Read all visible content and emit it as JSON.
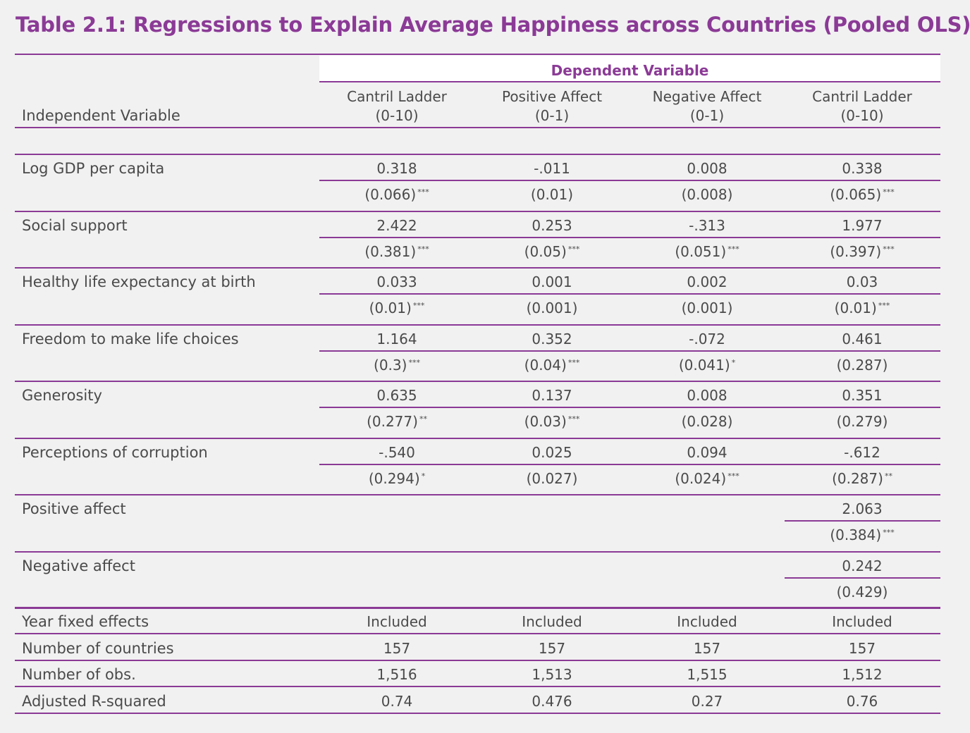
{
  "title": "Table 2.1: Regressions to Explain Average Happiness across Countries (Pooled OLS)",
  "dependent_variable_label": "Dependent Variable",
  "independent_variable_label": "Independent Variable",
  "columns": [
    {
      "name": "Cantril Ladder",
      "range": "(0-10)"
    },
    {
      "name": "Positive Affect",
      "range": "(0-1)"
    },
    {
      "name": "Negative Affect",
      "range": "(0-1)"
    },
    {
      "name": "Cantril Ladder",
      "range": "(0-10)"
    }
  ],
  "rows": [
    {
      "label": "Log GDP per capita",
      "coef": [
        "0.318",
        "-.011",
        "0.008",
        "0.338"
      ],
      "se": [
        "(0.066)",
        "(0.01)",
        "(0.008)",
        "(0.065)"
      ],
      "stars": [
        "***",
        "",
        "",
        "***"
      ]
    },
    {
      "label": "Social support",
      "coef": [
        "2.422",
        "0.253",
        "-.313",
        "1.977"
      ],
      "se": [
        "(0.381)",
        "(0.05)",
        "(0.051)",
        "(0.397)"
      ],
      "stars": [
        "***",
        "***",
        "***",
        "***"
      ]
    },
    {
      "label": "Healthy life expectancy at birth",
      "coef": [
        "0.033",
        "0.001",
        "0.002",
        "0.03"
      ],
      "se": [
        "(0.01)",
        "(0.001)",
        "(0.001)",
        "(0.01)"
      ],
      "stars": [
        "***",
        "",
        "",
        "***"
      ]
    },
    {
      "label": "Freedom to make life choices",
      "coef": [
        "1.164",
        "0.352",
        "-.072",
        "0.461"
      ],
      "se": [
        "(0.3)",
        "(0.04)",
        "(0.041)",
        "(0.287)"
      ],
      "stars": [
        "***",
        "***",
        "*",
        ""
      ]
    },
    {
      "label": "Generosity",
      "coef": [
        "0.635",
        "0.137",
        "0.008",
        "0.351"
      ],
      "se": [
        "(0.277)",
        "(0.03)",
        "(0.028)",
        "(0.279)"
      ],
      "stars": [
        "**",
        "***",
        "",
        ""
      ]
    },
    {
      "label": "Perceptions of corruption",
      "coef": [
        "-.540",
        "0.025",
        "0.094",
        "-.612"
      ],
      "se": [
        "(0.294)",
        "(0.027)",
        "(0.024)",
        "(0.287)"
      ],
      "stars": [
        "*",
        "",
        "***",
        "**"
      ]
    },
    {
      "label": "Positive affect",
      "coef": [
        "",
        "",
        "",
        "2.063"
      ],
      "se": [
        "",
        "",
        "",
        "(0.384)"
      ],
      "stars": [
        "",
        "",
        "",
        "***"
      ]
    },
    {
      "label": "Negative affect",
      "coef": [
        "",
        "",
        "",
        "0.242"
      ],
      "se": [
        "",
        "",
        "",
        "(0.429)"
      ],
      "stars": [
        "",
        "",
        "",
        ""
      ]
    }
  ],
  "footer_rows": [
    {
      "label": "Year fixed effects",
      "values": [
        "Included",
        "Included",
        "Included",
        "Included"
      ]
    },
    {
      "label": "Number of countries",
      "values": [
        "157",
        "157",
        "157",
        "157"
      ]
    },
    {
      "label": "Number of obs.",
      "values": [
        "1,516",
        "1,513",
        "1,515",
        "1,512"
      ]
    },
    {
      "label": "Adjusted R-squared",
      "values": [
        "0.74",
        "0.476",
        "0.27",
        "0.76"
      ]
    }
  ],
  "colors": {
    "accent": "#8b3a96",
    "background": "#f1f1f1",
    "text": "#4a4a4a"
  }
}
